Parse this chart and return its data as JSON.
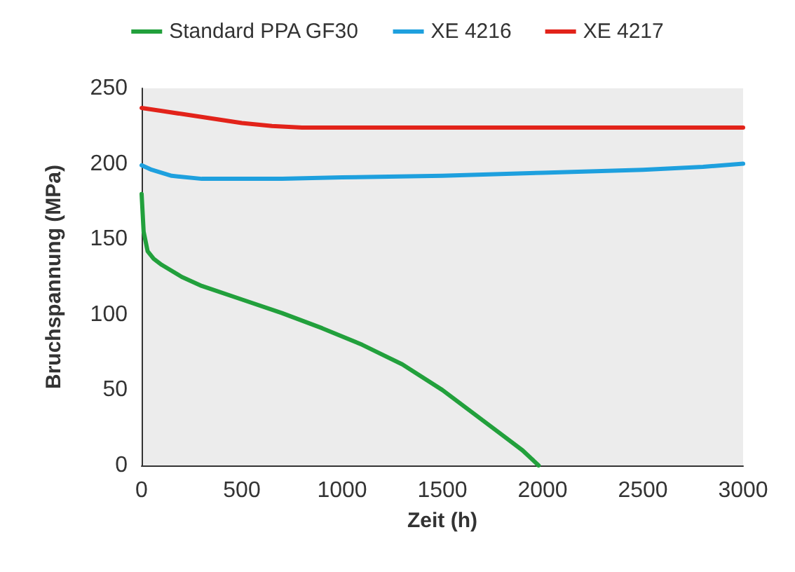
{
  "chart_data": {
    "type": "line",
    "xlabel": "Zeit (h)",
    "ylabel": "Bruchspannung (MPa)",
    "xlim": [
      0,
      3000
    ],
    "xticks": [
      0,
      500,
      1000,
      1500,
      2000,
      2500,
      3000
    ],
    "ylim": [
      0,
      250
    ],
    "yticks": [
      0,
      50,
      100,
      150,
      200,
      250
    ],
    "grid": false,
    "legend": "top",
    "marker": "none",
    "line_style": "solid",
    "series": [
      {
        "name": "Standard PPA GF30",
        "color": "#22a03c",
        "x": [
          0,
          10,
          30,
          60,
          100,
          200,
          300,
          500,
          700,
          900,
          1100,
          1300,
          1500,
          1650,
          1800,
          1900,
          1980
        ],
        "values": [
          180,
          155,
          142,
          137,
          133,
          125,
          119,
          110,
          101,
          91,
          80,
          67,
          50,
          35,
          20,
          10,
          0
        ]
      },
      {
        "name": "XE 4216",
        "color": "#1ea0de",
        "x": [
          0,
          50,
          150,
          300,
          500,
          700,
          1000,
          1500,
          2000,
          2500,
          2800,
          3000
        ],
        "values": [
          199,
          196,
          192,
          190,
          190,
          190,
          191,
          192,
          194,
          196,
          198,
          200
        ]
      },
      {
        "name": "XE 4217",
        "color": "#e2231a",
        "x": [
          0,
          100,
          200,
          350,
          500,
          650,
          800,
          1000,
          1500,
          2000,
          2500,
          3000
        ],
        "values": [
          237,
          235,
          233,
          230,
          227,
          225,
          224,
          224,
          224,
          224,
          224,
          224
        ]
      }
    ]
  }
}
